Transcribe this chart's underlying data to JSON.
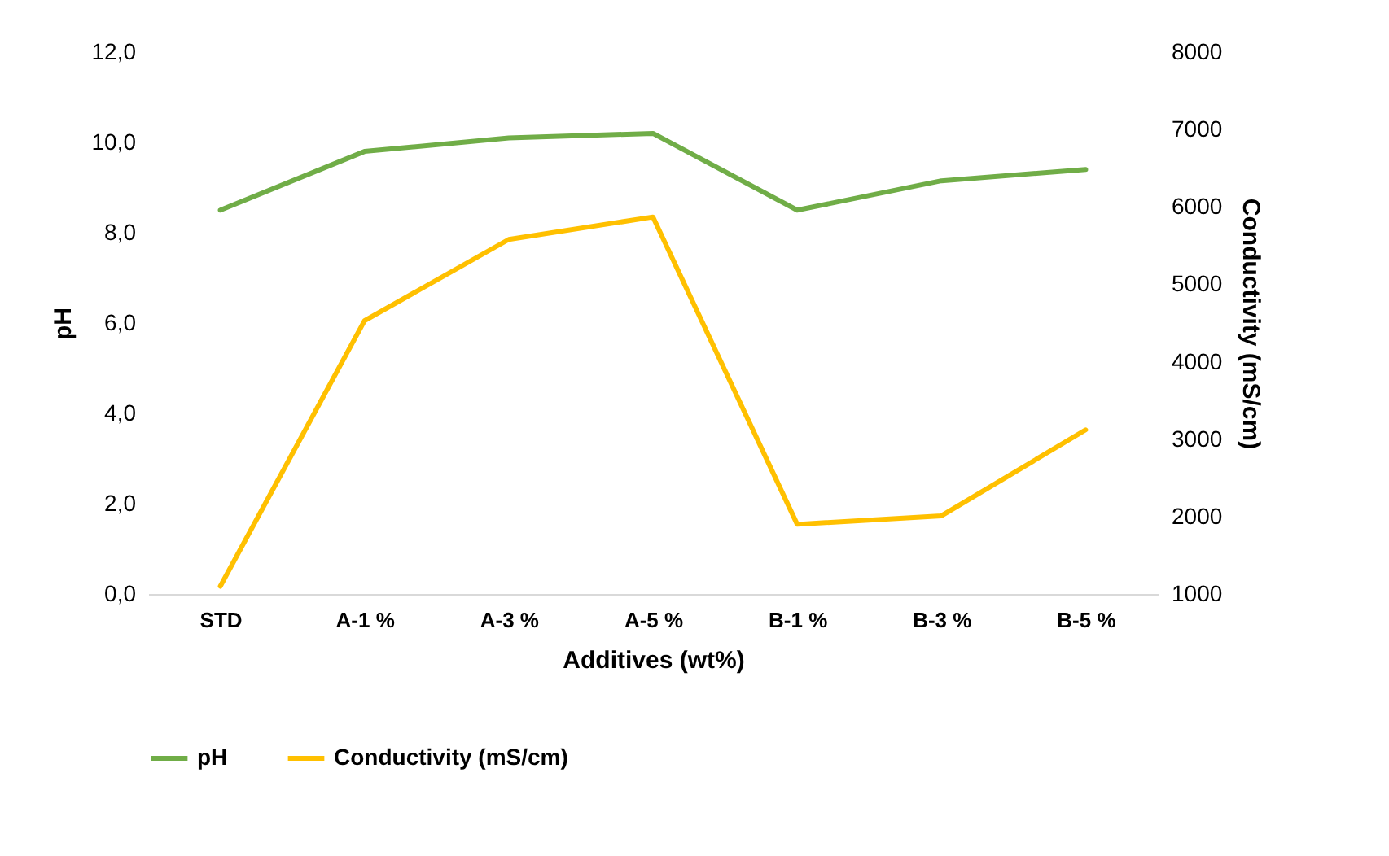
{
  "chart_data": {
    "type": "line",
    "xlabel": "Additives (wt%)",
    "ylabel": "pH",
    "y2label": "Conductivity (mS/cm)",
    "categories": [
      "STD",
      "A-1 %",
      "A-3 %",
      "A-5 %",
      "B-1 %",
      "B-3 %",
      "B-5 %"
    ],
    "series": [
      {
        "name": "pH",
        "color": "#70ad47",
        "values": [
          8.5,
          9.8,
          10.1,
          10.2,
          8.5,
          9.15,
          9.4
        ]
      },
      {
        "name": "Conductivity (mS/cm)",
        "color": "#ffc000",
        "axis": "y2",
        "values": [
          1100,
          4530,
          5580,
          5870,
          1900,
          2010,
          3120
        ]
      }
    ],
    "ylim": [
      0,
      12
    ],
    "yticks": [
      {
        "value": 0,
        "label": "0,0"
      },
      {
        "value": 2,
        "label": "2,0"
      },
      {
        "value": 4,
        "label": "4,0"
      },
      {
        "value": 6,
        "label": "6,0"
      },
      {
        "value": 8,
        "label": "8,0"
      },
      {
        "value": 10,
        "label": "10,0"
      },
      {
        "value": 12,
        "label": "12,0"
      }
    ],
    "y2lim": [
      1000,
      8000
    ],
    "y2ticks": [
      1000,
      2000,
      3000,
      4000,
      5000,
      6000,
      7000,
      8000
    ],
    "legend": "bottom",
    "grid": false
  }
}
